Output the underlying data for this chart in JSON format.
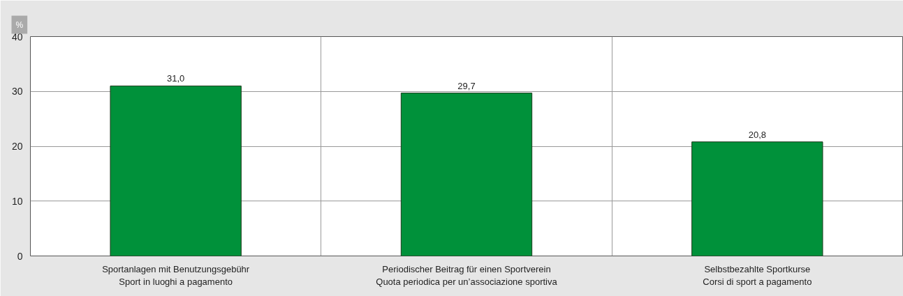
{
  "chart_data": {
    "type": "bar",
    "ylabel": "%",
    "categories": [
      "Sportanlagen mit Benutzungsgebühr\nSport in luoghi a pagamento",
      "Periodischer Beitrag für einen Sportverein\nQuota periodica per un’associazione sportiva",
      "Selbstbezahlte Sportkurse\nCorsi di sport a pagamento"
    ],
    "values": [
      31.0,
      29.7,
      20.8
    ],
    "value_labels": [
      "31,0",
      "29,7",
      "20,8"
    ],
    "color": "#00913a",
    "ylim": [
      0,
      40
    ],
    "yticks": [
      0,
      10,
      20,
      30,
      40
    ],
    "grid": true
  }
}
